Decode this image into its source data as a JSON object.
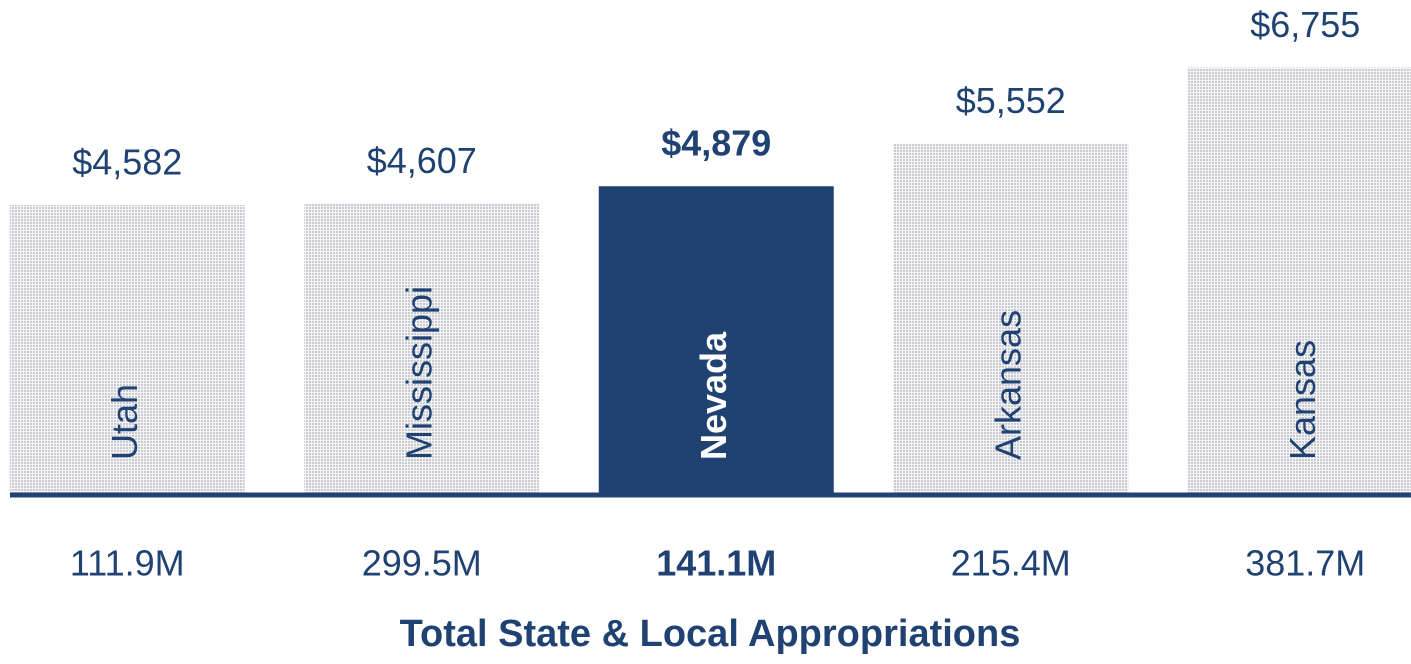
{
  "chart_data": {
    "type": "bar",
    "title": "Total State & Local Appropriations",
    "categories": [
      "Utah",
      "Mississippi",
      "Nevada",
      "Arkansas",
      "Kansas"
    ],
    "values": [
      4582,
      4607,
      4879,
      5552,
      6755
    ],
    "value_labels": [
      "$4,582",
      "$4,607",
      "$4,879",
      "$5,552",
      "$6,755"
    ],
    "appropriations": [
      "111.9M",
      "299.5M",
      "141.1M",
      "215.4M",
      "381.7M"
    ],
    "ylim": [
      0,
      7000
    ],
    "color": "#d9dade",
    "highlight": "Nevada",
    "highlight_color": "#1f4272"
  }
}
